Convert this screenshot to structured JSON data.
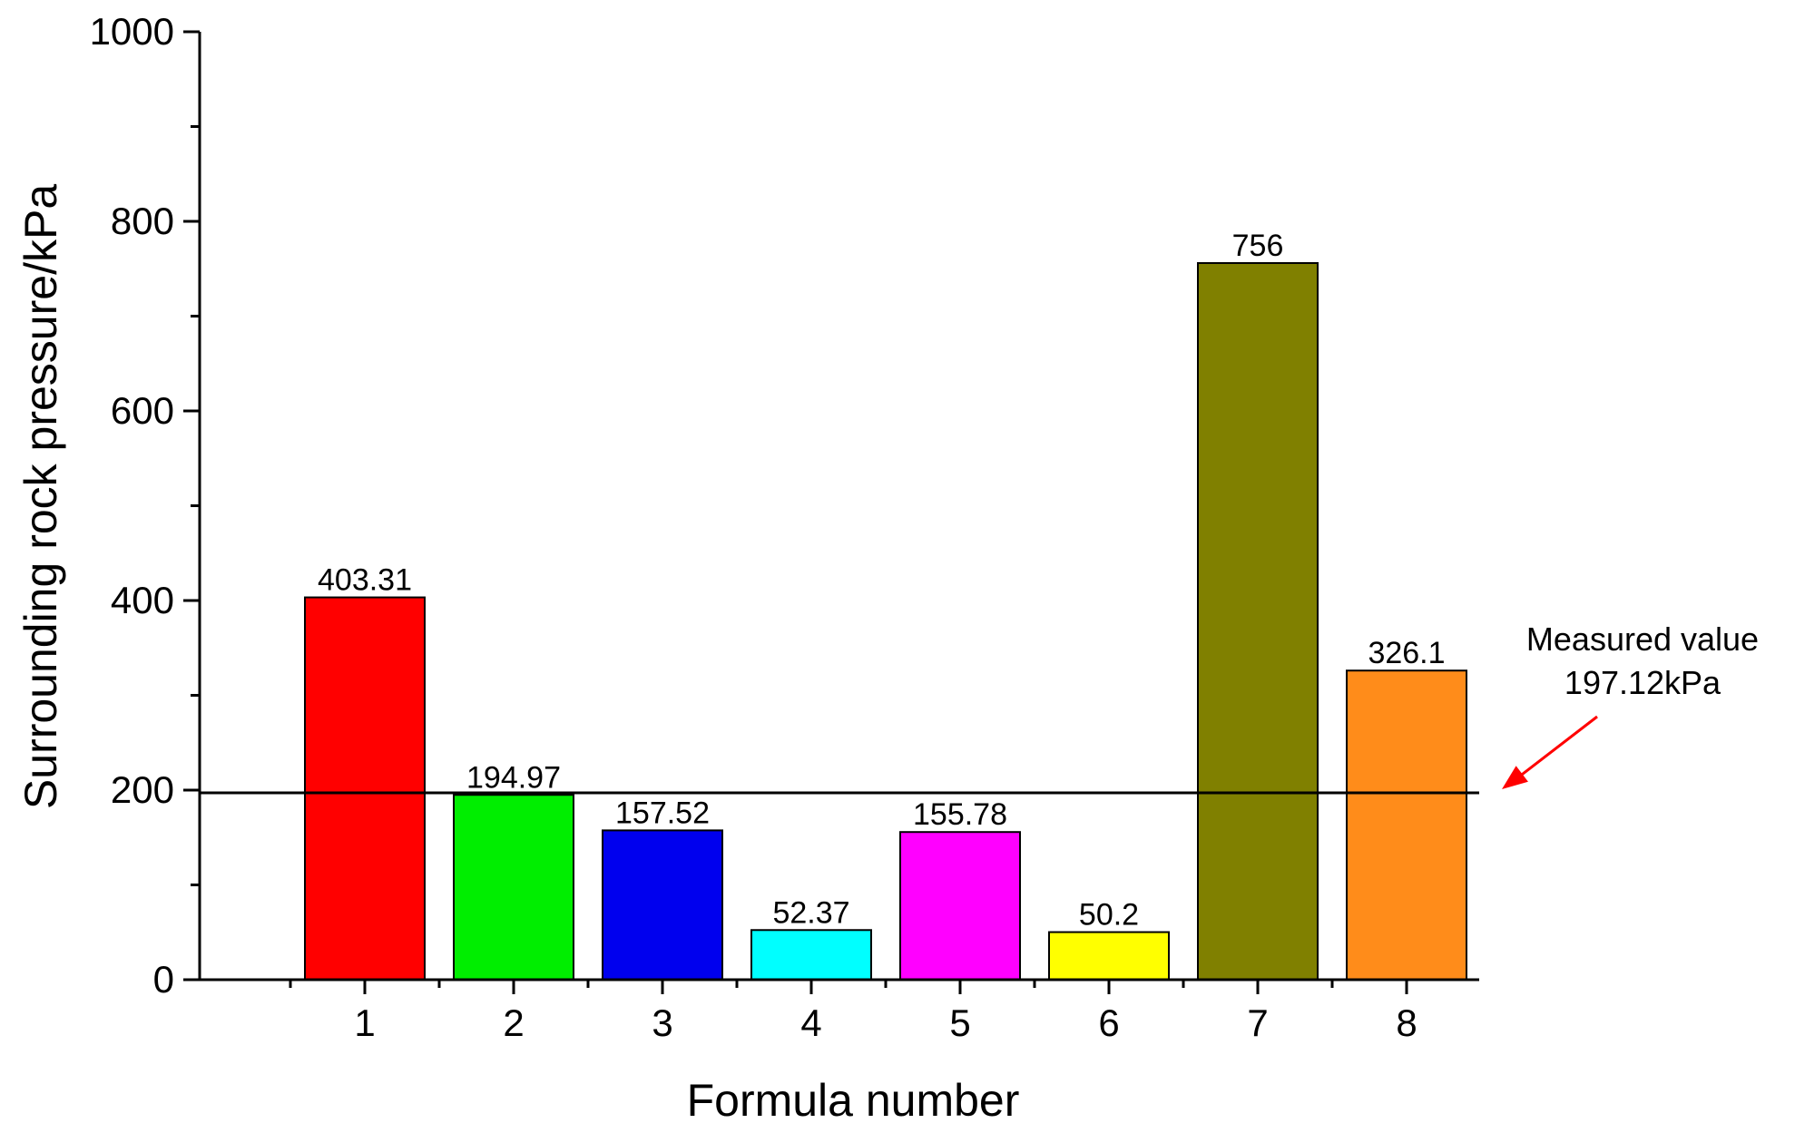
{
  "chart_data": {
    "type": "bar",
    "title": "",
    "xlabel": "Formula number",
    "ylabel": "Surrounding rock pressure/kPa",
    "categories": [
      "1",
      "2",
      "3",
      "4",
      "5",
      "6",
      "7",
      "8"
    ],
    "values": [
      403.31,
      194.97,
      157.52,
      52.37,
      155.78,
      50.2,
      756,
      326.1
    ],
    "value_labels": [
      "403.31",
      "194.97",
      "157.52",
      "52.37",
      "155.78",
      "50.2",
      "756",
      "326.1"
    ],
    "bar_colors": [
      "#ff0000",
      "#00ee00",
      "#0000ee",
      "#00ffff",
      "#ff00ff",
      "#ffff00",
      "#808000",
      "#ff8c1a"
    ],
    "ylim": [
      0,
      1000
    ],
    "yticks": [
      0,
      200,
      400,
      600,
      800,
      1000
    ],
    "ytick_labels": [
      "0",
      "200",
      "400",
      "600",
      "800",
      "1000"
    ],
    "grid": false,
    "reference_line": {
      "value": 197.12,
      "color": "#000000",
      "annotation_line1": "Measured value",
      "annotation_line2": "197.12kPa",
      "arrow_color": "#ff0000"
    }
  }
}
